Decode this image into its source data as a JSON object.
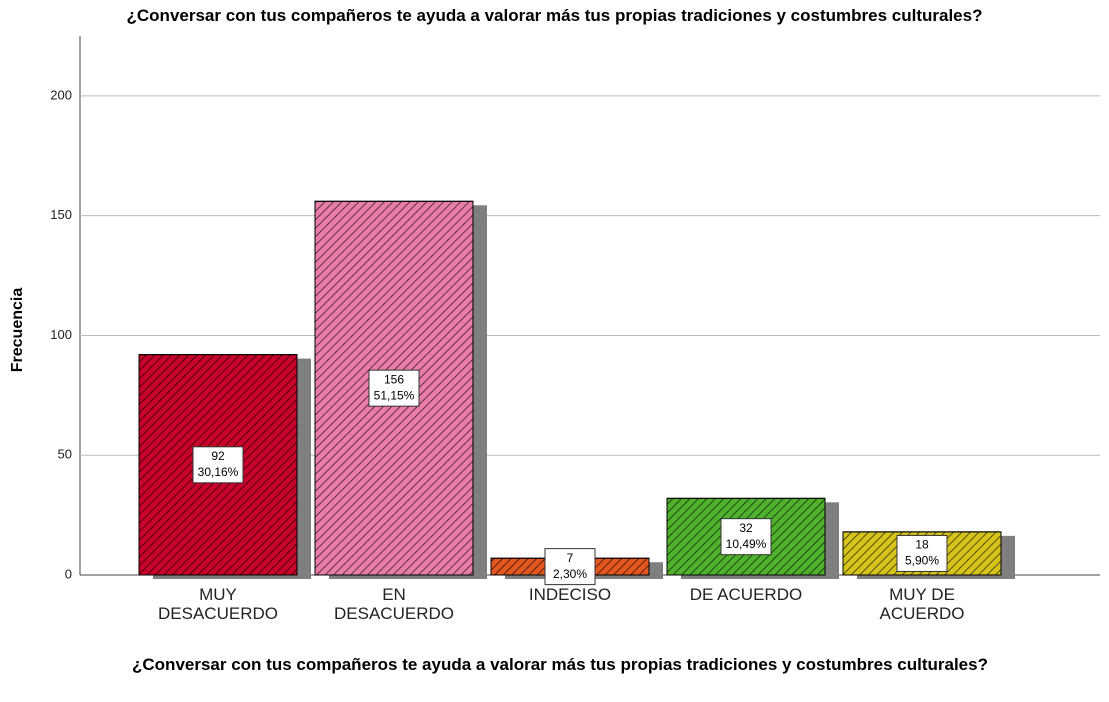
{
  "chart_data": {
    "type": "bar",
    "title": "¿Conversar con tus compañeros te ayuda a valorar más tus propias tradiciones y costumbres culturales?",
    "x_label": "¿Conversar con tus compañeros te ayuda a valorar más tus propias tradiciones y costumbres culturales?",
    "y_label": "Frecuencia",
    "categories": [
      "MUY\nDESACUERDO",
      "EN\nDESACUERDO",
      "INDECISO",
      "DE ACUERDO",
      "MUY DE\nACUERDO"
    ],
    "values": [
      92,
      156,
      7,
      32,
      18
    ],
    "percents": [
      30.16,
      51.15,
      2.3,
      10.49,
      5.9
    ],
    "percent_labels": [
      "30,16%",
      "51,15%",
      "2,30%",
      "10,49%",
      "5,90%"
    ],
    "colors": [
      "#c8002b",
      "#e97ca9",
      "#e4571f",
      "#4fb22c",
      "#d6c41c"
    ],
    "ylim": [
      0,
      225
    ],
    "yticks": [
      0,
      50,
      100,
      150,
      200
    ],
    "grid": true
  }
}
